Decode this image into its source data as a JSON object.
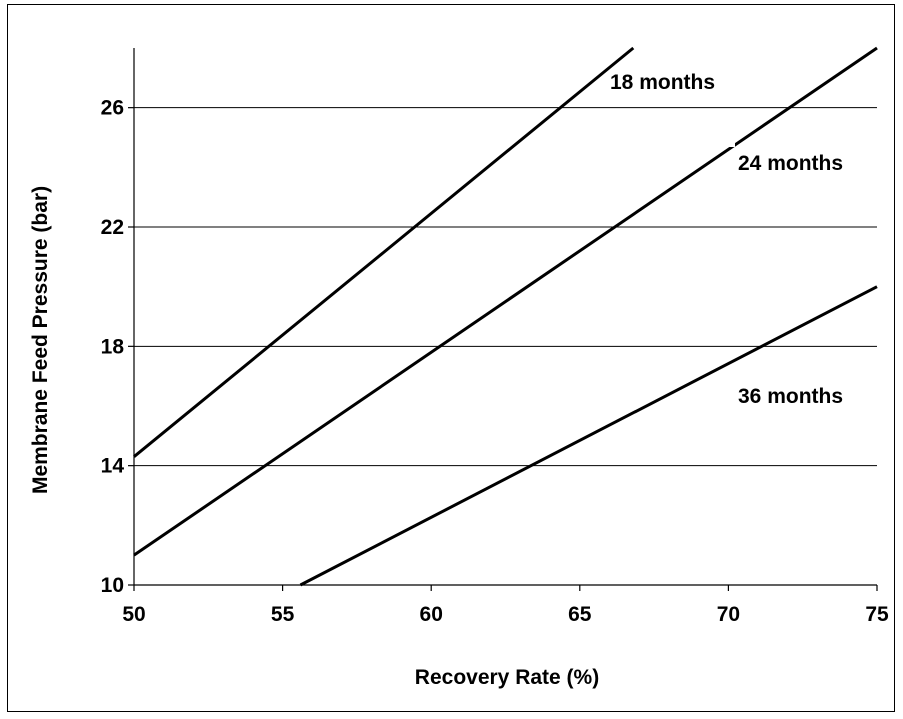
{
  "chart_data": {
    "type": "line",
    "title": "",
    "xlabel": "Recovery Rate (%)",
    "ylabel": "Membrane Feed Pressure (bar)",
    "xlim": [
      50,
      75
    ],
    "ylim": [
      10,
      28
    ],
    "xticks": [
      "50",
      "55",
      "60",
      "65",
      "70",
      "75"
    ],
    "yticks": [
      "10",
      "14",
      "18",
      "22",
      "26"
    ],
    "grid": "horizontal",
    "legend": "none (series labeled inline)",
    "series": [
      {
        "name": "18 months",
        "x": [
          50,
          66.8
        ],
        "y": [
          14.3,
          28
        ]
      },
      {
        "name": "24 months",
        "x": [
          50,
          75
        ],
        "y": [
          11.0,
          28
        ]
      },
      {
        "name": "36 months",
        "x": [
          55.6,
          75
        ],
        "y": [
          10,
          20
        ]
      }
    ],
    "colors": {
      "line": "#000000",
      "grid": "#000000",
      "background": "#ffffff"
    }
  }
}
